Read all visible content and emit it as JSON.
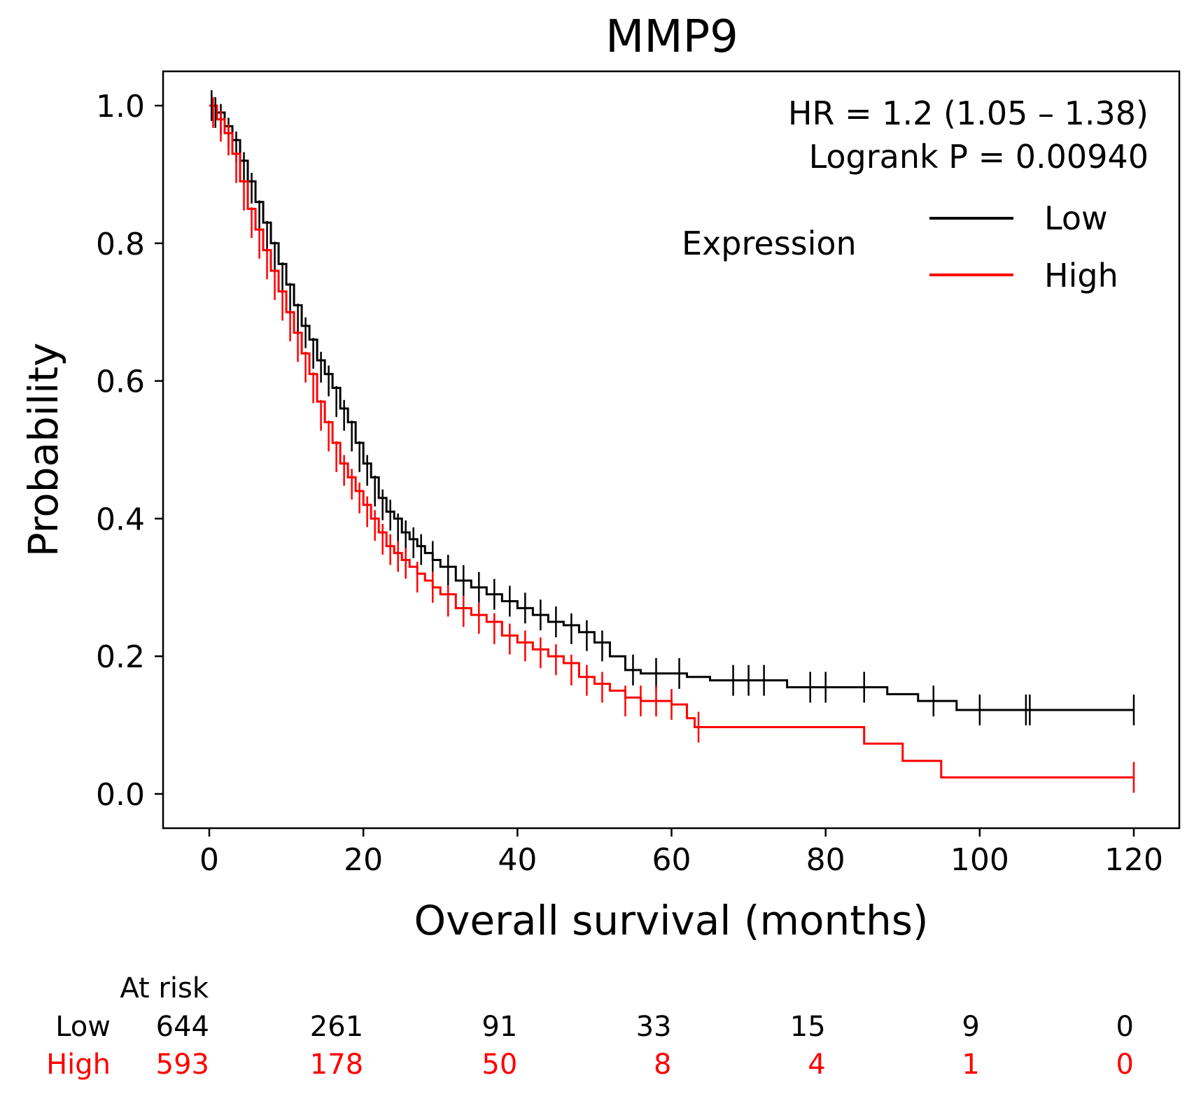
{
  "chart_data": {
    "type": "line",
    "title": "MMP9",
    "xlabel": "Overall survival (months)",
    "ylabel": "Probability",
    "xlim": [
      -6,
      124
    ],
    "ylim": [
      -0.05,
      1.05
    ],
    "xticks": [
      0,
      20,
      40,
      60,
      80,
      100,
      120
    ],
    "yticks": [
      0.0,
      0.2,
      0.4,
      0.6,
      0.8,
      1.0
    ],
    "xtick_labels": [
      "0",
      "20",
      "40",
      "60",
      "80",
      "100",
      "120"
    ],
    "ytick_labels": [
      "0.0",
      "0.2",
      "0.4",
      "0.6",
      "0.8",
      "1.0"
    ],
    "grid": false,
    "annotations": {
      "hr": "HR = 1.2 (1.05 – 1.38)",
      "logrank": "Logrank P = 0.00940"
    },
    "legend": {
      "title": "Expression",
      "position": "top-right",
      "entries": [
        {
          "label": "Low",
          "color": "#000000"
        },
        {
          "label": "High",
          "color": "#ff0000"
        }
      ]
    },
    "series": [
      {
        "name": "Low",
        "color": "#000000",
        "x": [
          0,
          1,
          2,
          3,
          4,
          5,
          6,
          7,
          8,
          9,
          10,
          11,
          12,
          13,
          14,
          15,
          16,
          17,
          18,
          19,
          20,
          21,
          22,
          23,
          24,
          25,
          26,
          27,
          28,
          29,
          30,
          32,
          34,
          36,
          38,
          40,
          42,
          44,
          46,
          48,
          50,
          52,
          54,
          56,
          58,
          60,
          62,
          65,
          70,
          75,
          80,
          85,
          88,
          90,
          92,
          95,
          97,
          100,
          105,
          110,
          115,
          120
        ],
        "y": [
          1.0,
          0.99,
          0.97,
          0.95,
          0.92,
          0.89,
          0.86,
          0.83,
          0.8,
          0.77,
          0.74,
          0.71,
          0.68,
          0.66,
          0.63,
          0.61,
          0.59,
          0.56,
          0.54,
          0.51,
          0.48,
          0.46,
          0.43,
          0.41,
          0.4,
          0.38,
          0.37,
          0.36,
          0.35,
          0.34,
          0.33,
          0.31,
          0.3,
          0.29,
          0.28,
          0.27,
          0.26,
          0.25,
          0.245,
          0.235,
          0.22,
          0.2,
          0.18,
          0.175,
          0.175,
          0.175,
          0.17,
          0.165,
          0.165,
          0.155,
          0.155,
          0.155,
          0.145,
          0.145,
          0.135,
          0.135,
          0.122,
          0.122,
          0.122,
          0.122,
          0.122,
          0.122
        ],
        "censor_x": [
          0.3,
          0.8,
          1.5,
          2.5,
          3.5,
          4.5,
          5.5,
          6.5,
          7.5,
          8.5,
          9.5,
          10.5,
          11.5,
          12.5,
          13.5,
          14.5,
          15.5,
          16.5,
          17.5,
          18.5,
          19.5,
          20.5,
          21.5,
          22.5,
          23.5,
          24.5,
          25.5,
          26.5,
          27.5,
          29,
          31,
          33,
          35,
          37,
          39,
          41,
          43,
          45,
          47,
          49,
          51,
          55,
          58,
          61,
          68,
          70,
          72,
          78,
          80,
          85,
          94,
          100,
          106,
          106.5,
          120
        ],
        "censor_y": [
          1.0,
          0.99,
          0.98,
          0.96,
          0.94,
          0.91,
          0.88,
          0.84,
          0.81,
          0.78,
          0.75,
          0.72,
          0.69,
          0.67,
          0.64,
          0.62,
          0.6,
          0.57,
          0.55,
          0.52,
          0.49,
          0.47,
          0.44,
          0.42,
          0.405,
          0.385,
          0.375,
          0.365,
          0.355,
          0.345,
          0.325,
          0.31,
          0.3,
          0.29,
          0.28,
          0.27,
          0.26,
          0.25,
          0.24,
          0.23,
          0.215,
          0.18,
          0.175,
          0.175,
          0.165,
          0.165,
          0.165,
          0.155,
          0.155,
          0.155,
          0.135,
          0.122,
          0.122,
          0.122,
          0.122
        ]
      },
      {
        "name": "High",
        "color": "#ff0000",
        "x": [
          0,
          1,
          2,
          3,
          4,
          5,
          6,
          7,
          8,
          9,
          10,
          11,
          12,
          13,
          14,
          15,
          16,
          17,
          18,
          19,
          20,
          21,
          22,
          23,
          24,
          25,
          26,
          27,
          28,
          29,
          30,
          32,
          34,
          36,
          38,
          40,
          42,
          44,
          46,
          48,
          50,
          52,
          54,
          56,
          58,
          60,
          62,
          63,
          70,
          80,
          85,
          88,
          90,
          92,
          95,
          100,
          110,
          120
        ],
        "y": [
          1.0,
          0.98,
          0.96,
          0.93,
          0.89,
          0.85,
          0.82,
          0.79,
          0.76,
          0.73,
          0.7,
          0.67,
          0.64,
          0.61,
          0.57,
          0.54,
          0.51,
          0.48,
          0.46,
          0.44,
          0.42,
          0.4,
          0.38,
          0.36,
          0.35,
          0.34,
          0.33,
          0.32,
          0.31,
          0.3,
          0.29,
          0.27,
          0.26,
          0.25,
          0.23,
          0.22,
          0.21,
          0.2,
          0.19,
          0.17,
          0.16,
          0.15,
          0.14,
          0.135,
          0.135,
          0.13,
          0.11,
          0.097,
          0.097,
          0.097,
          0.073,
          0.073,
          0.048,
          0.048,
          0.024,
          0.024,
          0.024,
          0.024
        ],
        "censor_x": [
          0.5,
          1.5,
          2.5,
          3.5,
          4.5,
          5.5,
          6.5,
          7.5,
          8.5,
          9.5,
          10.5,
          11.5,
          12.5,
          13.5,
          14.5,
          15.5,
          16.5,
          17.5,
          18.5,
          19.5,
          20.5,
          21.5,
          22.5,
          23.5,
          24.5,
          25.5,
          27,
          29,
          31,
          33,
          35,
          37,
          39,
          41,
          43,
          45,
          47,
          49,
          51,
          54,
          56,
          58,
          60,
          63.5,
          120
        ],
        "censor_y": [
          0.99,
          0.97,
          0.95,
          0.91,
          0.87,
          0.83,
          0.8,
          0.77,
          0.74,
          0.71,
          0.68,
          0.65,
          0.62,
          0.59,
          0.55,
          0.52,
          0.49,
          0.47,
          0.45,
          0.43,
          0.41,
          0.39,
          0.37,
          0.355,
          0.345,
          0.335,
          0.315,
          0.3,
          0.28,
          0.265,
          0.255,
          0.24,
          0.225,
          0.215,
          0.205,
          0.195,
          0.18,
          0.165,
          0.155,
          0.135,
          0.135,
          0.135,
          0.13,
          0.097,
          0.024
        ]
      }
    ],
    "at_risk": {
      "header": "At risk",
      "times": [
        0,
        20,
        40,
        60,
        80,
        100,
        120
      ],
      "rows": [
        {
          "label": "Low",
          "color": "#000000",
          "values": [
            "644",
            "261",
            "91",
            "33",
            "15",
            "9",
            "0"
          ]
        },
        {
          "label": "High",
          "color": "#ff0000",
          "values": [
            "593",
            "178",
            "50",
            "8",
            "4",
            "1",
            "0"
          ]
        }
      ]
    }
  }
}
